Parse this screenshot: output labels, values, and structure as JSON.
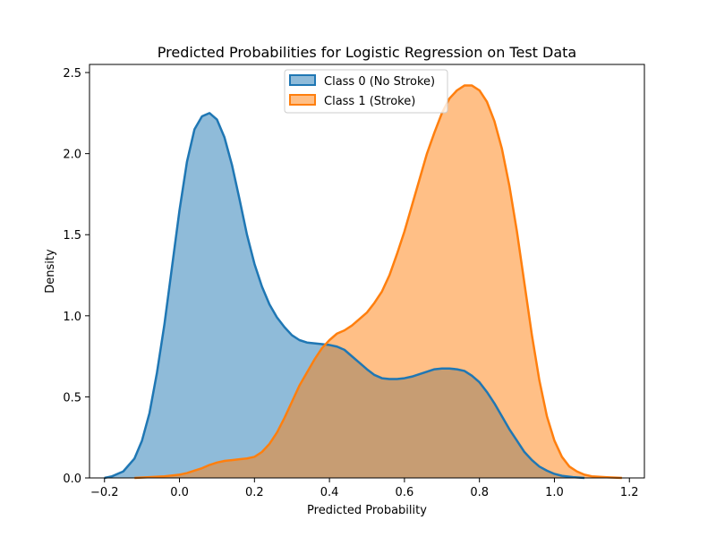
{
  "chart_data": {
    "type": "area",
    "title": "Predicted Probabilities for Logistic Regression on Test Data",
    "xlabel": "Predicted Probability",
    "ylabel": "Density",
    "xlim": [
      -0.24,
      1.24
    ],
    "ylim": [
      0,
      2.55
    ],
    "x_ticks": [
      "−0.2",
      "0.0",
      "0.2",
      "0.4",
      "0.6",
      "0.8",
      "1.0",
      "1.2"
    ],
    "x_tick_values": [
      -0.2,
      0.0,
      0.2,
      0.4,
      0.6,
      0.8,
      1.0,
      1.2
    ],
    "y_ticks": [
      "0.0",
      "0.5",
      "1.0",
      "1.5",
      "2.0",
      "2.5"
    ],
    "y_tick_values": [
      0.0,
      0.5,
      1.0,
      1.5,
      2.0,
      2.5
    ],
    "grid": false,
    "legend_position": "top-center",
    "series": [
      {
        "name": "Class 0 (No Stroke)",
        "color": "#1f77b4",
        "fill_opacity": 0.5,
        "points": [
          [
            -0.2,
            0.0
          ],
          [
            -0.18,
            0.01
          ],
          [
            -0.15,
            0.04
          ],
          [
            -0.12,
            0.12
          ],
          [
            -0.1,
            0.23
          ],
          [
            -0.08,
            0.4
          ],
          [
            -0.06,
            0.65
          ],
          [
            -0.04,
            0.95
          ],
          [
            -0.02,
            1.3
          ],
          [
            0.0,
            1.65
          ],
          [
            0.02,
            1.95
          ],
          [
            0.04,
            2.15
          ],
          [
            0.06,
            2.23
          ],
          [
            0.08,
            2.25
          ],
          [
            0.1,
            2.21
          ],
          [
            0.12,
            2.1
          ],
          [
            0.14,
            1.93
          ],
          [
            0.16,
            1.72
          ],
          [
            0.18,
            1.5
          ],
          [
            0.2,
            1.32
          ],
          [
            0.22,
            1.18
          ],
          [
            0.24,
            1.07
          ],
          [
            0.26,
            0.99
          ],
          [
            0.28,
            0.93
          ],
          [
            0.3,
            0.88
          ],
          [
            0.32,
            0.85
          ],
          [
            0.34,
            0.835
          ],
          [
            0.36,
            0.83
          ],
          [
            0.38,
            0.825
          ],
          [
            0.4,
            0.82
          ],
          [
            0.42,
            0.81
          ],
          [
            0.44,
            0.79
          ],
          [
            0.46,
            0.75
          ],
          [
            0.48,
            0.71
          ],
          [
            0.5,
            0.67
          ],
          [
            0.52,
            0.635
          ],
          [
            0.54,
            0.615
          ],
          [
            0.56,
            0.61
          ],
          [
            0.58,
            0.61
          ],
          [
            0.6,
            0.615
          ],
          [
            0.62,
            0.625
          ],
          [
            0.64,
            0.64
          ],
          [
            0.66,
            0.655
          ],
          [
            0.68,
            0.67
          ],
          [
            0.7,
            0.675
          ],
          [
            0.72,
            0.675
          ],
          [
            0.74,
            0.67
          ],
          [
            0.76,
            0.66
          ],
          [
            0.78,
            0.63
          ],
          [
            0.8,
            0.59
          ],
          [
            0.82,
            0.53
          ],
          [
            0.84,
            0.46
          ],
          [
            0.86,
            0.38
          ],
          [
            0.88,
            0.3
          ],
          [
            0.9,
            0.23
          ],
          [
            0.92,
            0.16
          ],
          [
            0.94,
            0.11
          ],
          [
            0.96,
            0.07
          ],
          [
            0.98,
            0.045
          ],
          [
            1.0,
            0.025
          ],
          [
            1.02,
            0.013
          ],
          [
            1.05,
            0.005
          ],
          [
            1.08,
            0.0
          ]
        ]
      },
      {
        "name": "Class 1 (Stroke)",
        "color": "#ff7f0e",
        "fill_opacity": 0.5,
        "points": [
          [
            -0.12,
            0.0
          ],
          [
            -0.08,
            0.005
          ],
          [
            -0.04,
            0.01
          ],
          [
            0.0,
            0.02
          ],
          [
            0.02,
            0.03
          ],
          [
            0.04,
            0.045
          ],
          [
            0.06,
            0.06
          ],
          [
            0.08,
            0.08
          ],
          [
            0.1,
            0.095
          ],
          [
            0.12,
            0.105
          ],
          [
            0.14,
            0.11
          ],
          [
            0.16,
            0.115
          ],
          [
            0.18,
            0.12
          ],
          [
            0.2,
            0.13
          ],
          [
            0.22,
            0.16
          ],
          [
            0.24,
            0.21
          ],
          [
            0.26,
            0.28
          ],
          [
            0.28,
            0.37
          ],
          [
            0.3,
            0.47
          ],
          [
            0.32,
            0.57
          ],
          [
            0.34,
            0.65
          ],
          [
            0.36,
            0.73
          ],
          [
            0.38,
            0.8
          ],
          [
            0.4,
            0.85
          ],
          [
            0.42,
            0.89
          ],
          [
            0.44,
            0.91
          ],
          [
            0.46,
            0.94
          ],
          [
            0.48,
            0.98
          ],
          [
            0.5,
            1.02
          ],
          [
            0.52,
            1.08
          ],
          [
            0.54,
            1.15
          ],
          [
            0.56,
            1.25
          ],
          [
            0.58,
            1.38
          ],
          [
            0.6,
            1.52
          ],
          [
            0.62,
            1.68
          ],
          [
            0.64,
            1.84
          ],
          [
            0.66,
            2.0
          ],
          [
            0.68,
            2.13
          ],
          [
            0.7,
            2.25
          ],
          [
            0.72,
            2.34
          ],
          [
            0.74,
            2.39
          ],
          [
            0.76,
            2.42
          ],
          [
            0.78,
            2.42
          ],
          [
            0.8,
            2.39
          ],
          [
            0.82,
            2.32
          ],
          [
            0.84,
            2.2
          ],
          [
            0.86,
            2.03
          ],
          [
            0.88,
            1.8
          ],
          [
            0.9,
            1.52
          ],
          [
            0.92,
            1.2
          ],
          [
            0.94,
            0.88
          ],
          [
            0.96,
            0.6
          ],
          [
            0.98,
            0.38
          ],
          [
            1.0,
            0.23
          ],
          [
            1.02,
            0.13
          ],
          [
            1.04,
            0.07
          ],
          [
            1.06,
            0.04
          ],
          [
            1.08,
            0.02
          ],
          [
            1.1,
            0.01
          ],
          [
            1.14,
            0.004
          ],
          [
            1.18,
            0.0
          ]
        ]
      }
    ]
  }
}
